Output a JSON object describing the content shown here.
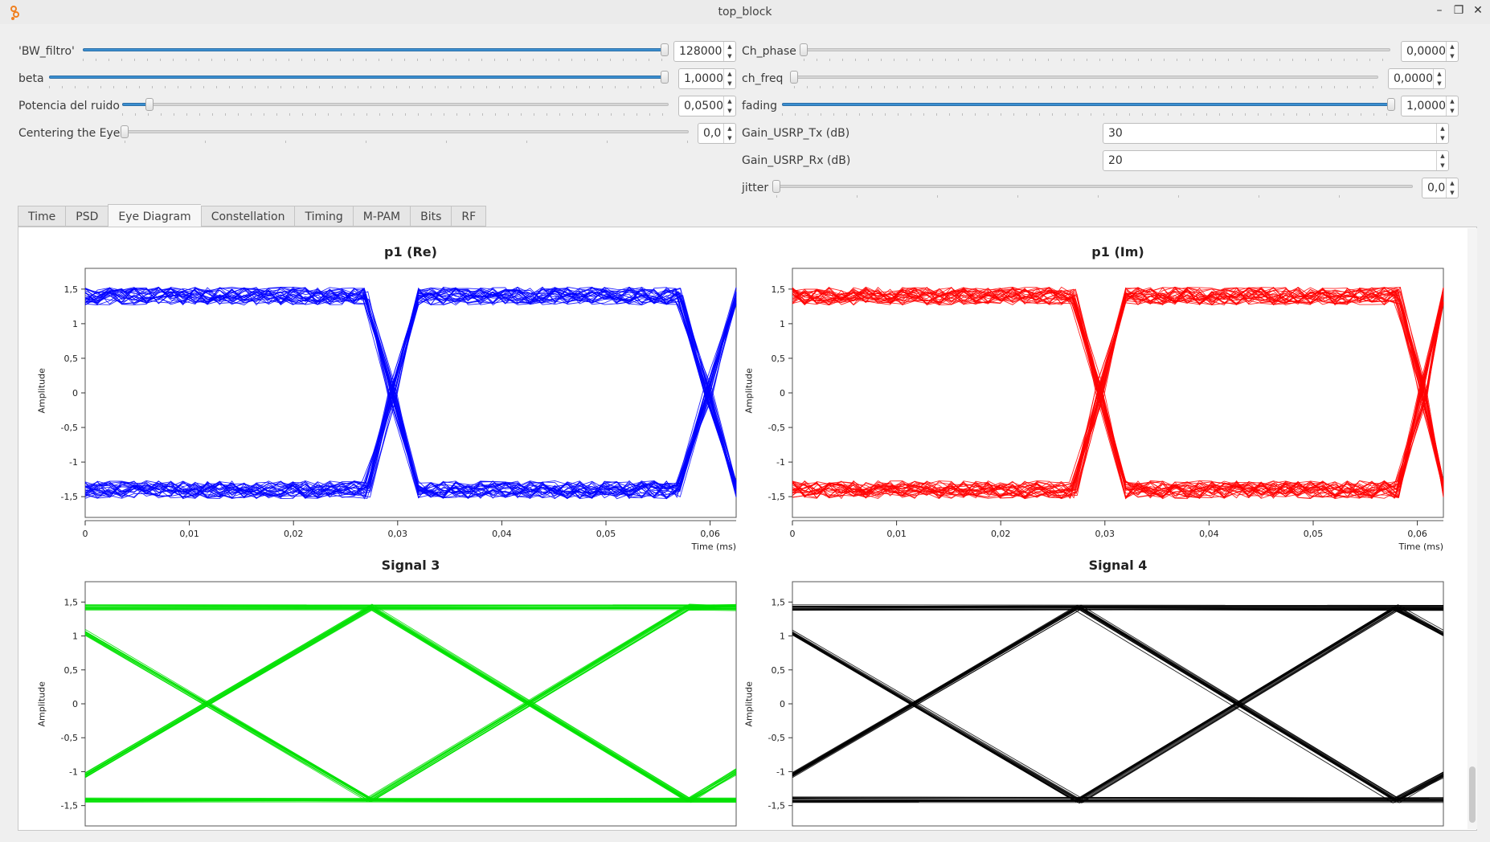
{
  "window": {
    "title": "top_block"
  },
  "controls": {
    "left": [
      {
        "label": "'BW_filtro'",
        "value": "128000",
        "level": 1.0
      },
      {
        "label": "beta",
        "value": "1,0000",
        "level": 1.0
      },
      {
        "label": "Potencia del ruido",
        "value": "0,0500",
        "level": 0.05
      },
      {
        "label": "Centering the Eye",
        "value": "0,0",
        "level": 0.0
      }
    ],
    "right": [
      {
        "label": "Ch_phase",
        "value": "0,0000",
        "level": 0.0
      },
      {
        "label": "ch_freq",
        "value": "0,0000",
        "level": 0.0
      },
      {
        "label": "fading",
        "value": "1,0000",
        "level": 1.0
      },
      {
        "label": "Gain_USRP_Tx (dB)",
        "value": "30"
      },
      {
        "label": "Gain_USRP_Rx (dB)",
        "value": "20"
      },
      {
        "label": "jitter",
        "value": "0,0",
        "level": 0.0
      }
    ]
  },
  "tabs": [
    "Time",
    "PSD",
    "Eye Diagram",
    "Constellation",
    "Timing",
    "M-PAM",
    "Bits",
    "RF"
  ],
  "active_tab": "Eye Diagram",
  "chart_data": [
    {
      "type": "line",
      "title": "p1 (Re)",
      "xlabel": "Time (ms)",
      "ylabel": "Amplitude",
      "color": "#0000ff",
      "xlim": [
        0,
        0.0625
      ],
      "ylim": [
        -1.8,
        1.8
      ],
      "xticks": [
        "0",
        "0,01",
        "0,02",
        "0,03",
        "0,04",
        "0,05",
        "0,06"
      ],
      "yticks": [
        "1,5",
        "1",
        "0,5",
        "0",
        "-0,5",
        "-1",
        "-1,5"
      ],
      "series": [
        {
          "x": [
            0,
            0.027,
            0.0295,
            0.032,
            0.057,
            0.0598,
            0.0625
          ],
          "y": [
            1.4,
            1.4,
            0,
            -1.4,
            -1.4,
            0,
            1.4
          ]
        },
        {
          "x": [
            0,
            0.027,
            0.0295,
            0.032,
            0.057,
            0.0598,
            0.0625
          ],
          "y": [
            -1.4,
            -1.4,
            0,
            1.4,
            1.4,
            0,
            -1.4
          ]
        }
      ]
    },
    {
      "type": "line",
      "title": "p1 (Im)",
      "xlabel": "Time (ms)",
      "ylabel": "Amplitude",
      "color": "#ff0000",
      "xlim": [
        0,
        0.0625
      ],
      "ylim": [
        -1.8,
        1.8
      ],
      "xticks": [
        "0",
        "0,01",
        "0,02",
        "0,03",
        "0,04",
        "0,05",
        "0,06"
      ],
      "yticks": [
        "1,5",
        "1",
        "0,5",
        "0",
        "-0,5",
        "-1",
        "-1,5"
      ],
      "series": [
        {
          "x": [
            0,
            0.027,
            0.0295,
            0.032,
            0.058,
            0.0605,
            0.0625
          ],
          "y": [
            1.4,
            1.4,
            0,
            -1.4,
            -1.4,
            0,
            1.4
          ]
        },
        {
          "x": [
            0,
            0.027,
            0.0295,
            0.032,
            0.058,
            0.0605,
            0.0625
          ],
          "y": [
            -1.4,
            -1.4,
            0,
            1.4,
            1.4,
            0,
            -1.4
          ]
        }
      ]
    },
    {
      "type": "line",
      "title": "Signal 3",
      "xlabel": "",
      "ylabel": "Amplitude",
      "color": "#00e000",
      "xlim": [
        0,
        0.0625
      ],
      "ylim": [
        -1.8,
        1.8
      ],
      "xticks": [],
      "yticks": [
        "1,5",
        "1",
        "0,5",
        "0",
        "-0,5",
        "-1",
        "-1,5"
      ],
      "series": [
        {
          "x": [
            0,
            0.0625
          ],
          "y": [
            1.42,
            1.42
          ]
        },
        {
          "x": [
            0,
            0.0625
          ],
          "y": [
            -1.42,
            -1.42
          ]
        },
        {
          "x": [
            0,
            0.0275,
            0.058,
            0.0625
          ],
          "y": [
            1.05,
            -1.42,
            1.42,
            1.42
          ]
        },
        {
          "x": [
            0,
            0.0275,
            0.058,
            0.0625
          ],
          "y": [
            -1.05,
            1.42,
            -1.42,
            -1.0
          ]
        }
      ]
    },
    {
      "type": "line",
      "title": "Signal 4",
      "xlabel": "",
      "ylabel": "Amplitude",
      "color": "#000000",
      "xlim": [
        0,
        0.0625
      ],
      "ylim": [
        -1.8,
        1.8
      ],
      "xticks": [],
      "yticks": [
        "1,5",
        "1",
        "0,5",
        "0",
        "-0,5",
        "-1",
        "-1,5"
      ],
      "series": [
        {
          "x": [
            0,
            0.0625
          ],
          "y": [
            1.42,
            1.42
          ]
        },
        {
          "x": [
            0,
            0.0625
          ],
          "y": [
            -1.42,
            -1.42
          ]
        },
        {
          "x": [
            0,
            0.0275,
            0.058,
            0.0625
          ],
          "y": [
            1.05,
            -1.42,
            1.42,
            1.05
          ]
        },
        {
          "x": [
            0,
            0.0275,
            0.058,
            0.0625
          ],
          "y": [
            -1.05,
            1.42,
            -1.42,
            -1.05
          ]
        }
      ]
    }
  ]
}
